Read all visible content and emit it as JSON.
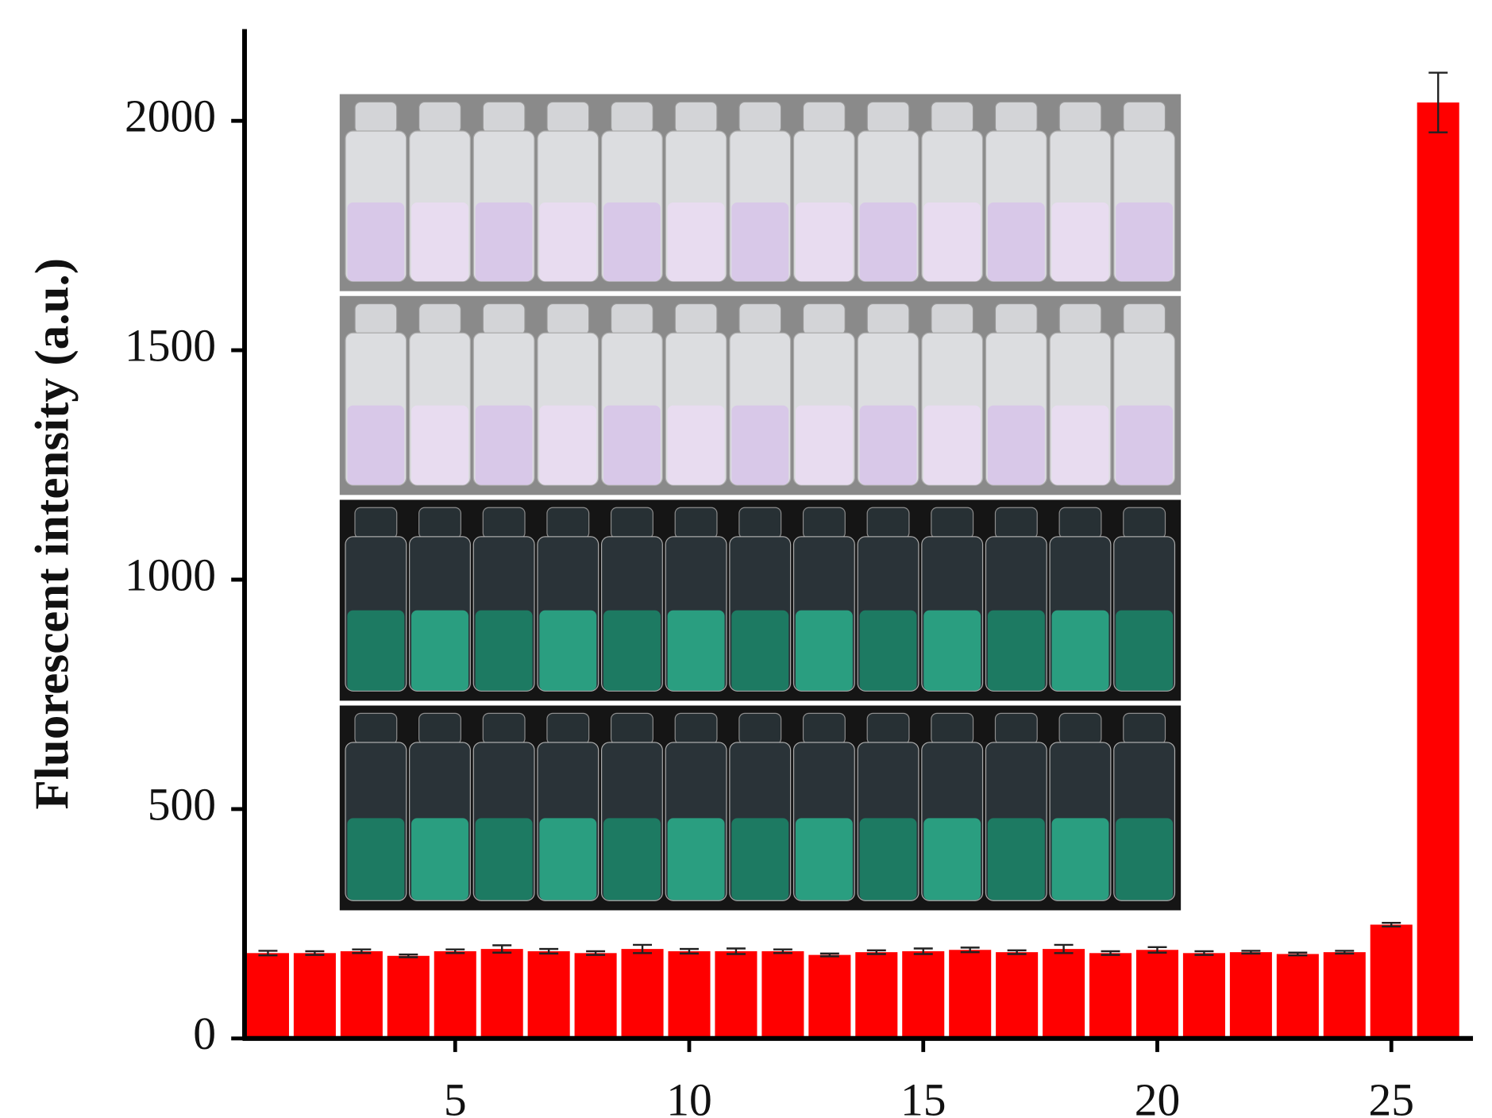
{
  "chart_data": {
    "type": "bar",
    "y_label": "Fluorescent intensity (a.u.)",
    "x": [
      1,
      2,
      3,
      4,
      5,
      6,
      7,
      8,
      9,
      10,
      11,
      12,
      13,
      14,
      15,
      16,
      17,
      18,
      19,
      20,
      21,
      22,
      23,
      24,
      25,
      26
    ],
    "values": [
      186,
      186,
      190,
      180,
      190,
      195,
      190,
      186,
      195,
      190,
      190,
      190,
      182,
      188,
      190,
      193,
      188,
      195,
      186,
      193,
      186,
      188,
      184,
      188,
      248,
      2040
    ],
    "errors": [
      5,
      4,
      4,
      3,
      4,
      8,
      5,
      4,
      9,
      5,
      6,
      4,
      3,
      4,
      6,
      5,
      4,
      9,
      4,
      6,
      4,
      3,
      3,
      3,
      4,
      65
    ],
    "color": "#ff0000",
    "xlim": [
      0.5,
      26.5
    ],
    "xticks": [
      5,
      10,
      15,
      20,
      25
    ],
    "ylim": [
      0,
      2200
    ],
    "yticks": [
      0,
      500,
      1000,
      1500,
      2000
    ]
  }
}
